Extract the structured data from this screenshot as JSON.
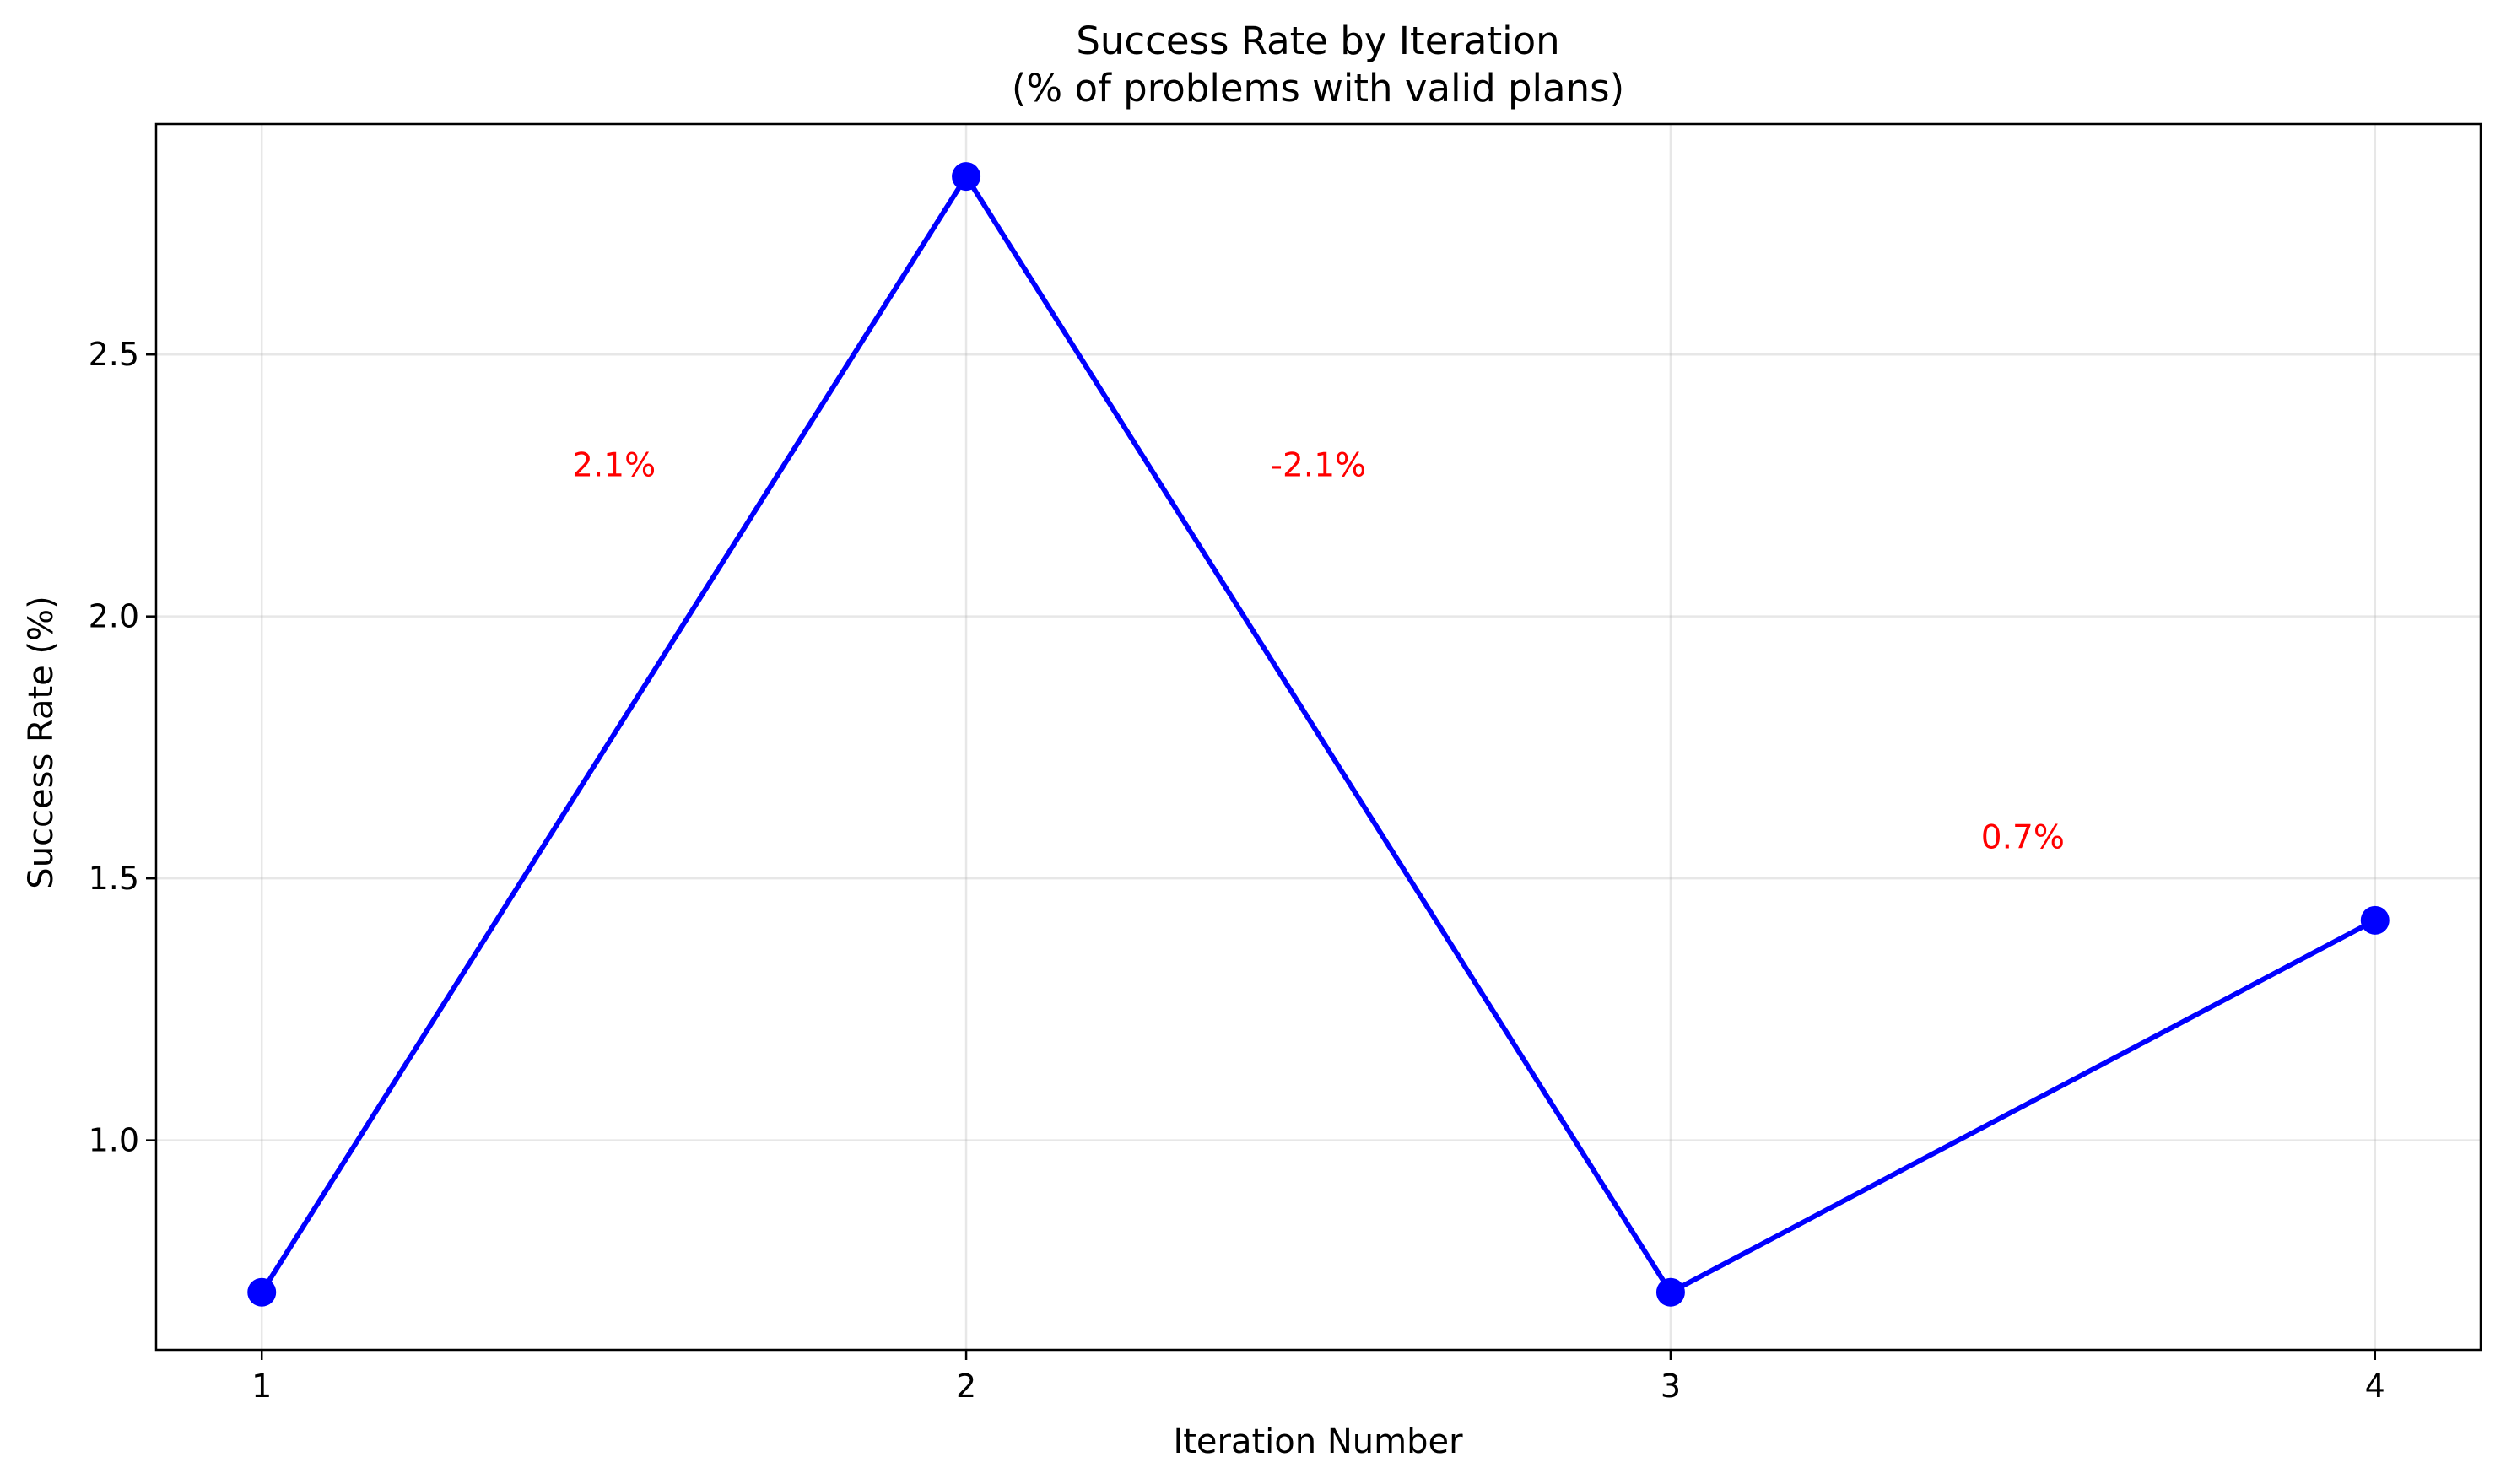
{
  "chart_data": {
    "type": "line",
    "title": "Success Rate by Iteration",
    "subtitle": "(% of problems with valid plans)",
    "xlabel": "Iteration Number",
    "ylabel": "Success Rate (%)",
    "x": [
      1,
      2,
      3,
      4
    ],
    "x_tick_labels": [
      "1",
      "2",
      "3",
      "4"
    ],
    "y_ticks": [
      1.0,
      1.5,
      2.0,
      2.5
    ],
    "y_tick_labels": [
      "1.0",
      "1.5",
      "2.0",
      "2.5"
    ],
    "xlim": [
      0.85,
      4.15
    ],
    "ylim": [
      0.6,
      2.94
    ],
    "grid": true,
    "series": [
      {
        "values": [
          0.71,
          2.84,
          0.71,
          1.42
        ],
        "color": "#0000ff",
        "marker": "circle"
      }
    ],
    "annotations": [
      {
        "text": "2.1%",
        "x": 1.5,
        "y": 2.29,
        "color": "#ff0000"
      },
      {
        "text": "-2.1%",
        "x": 2.5,
        "y": 2.29,
        "color": "#ff0000"
      },
      {
        "text": "0.7%",
        "x": 3.5,
        "y": 1.58,
        "color": "#ff0000"
      }
    ]
  }
}
